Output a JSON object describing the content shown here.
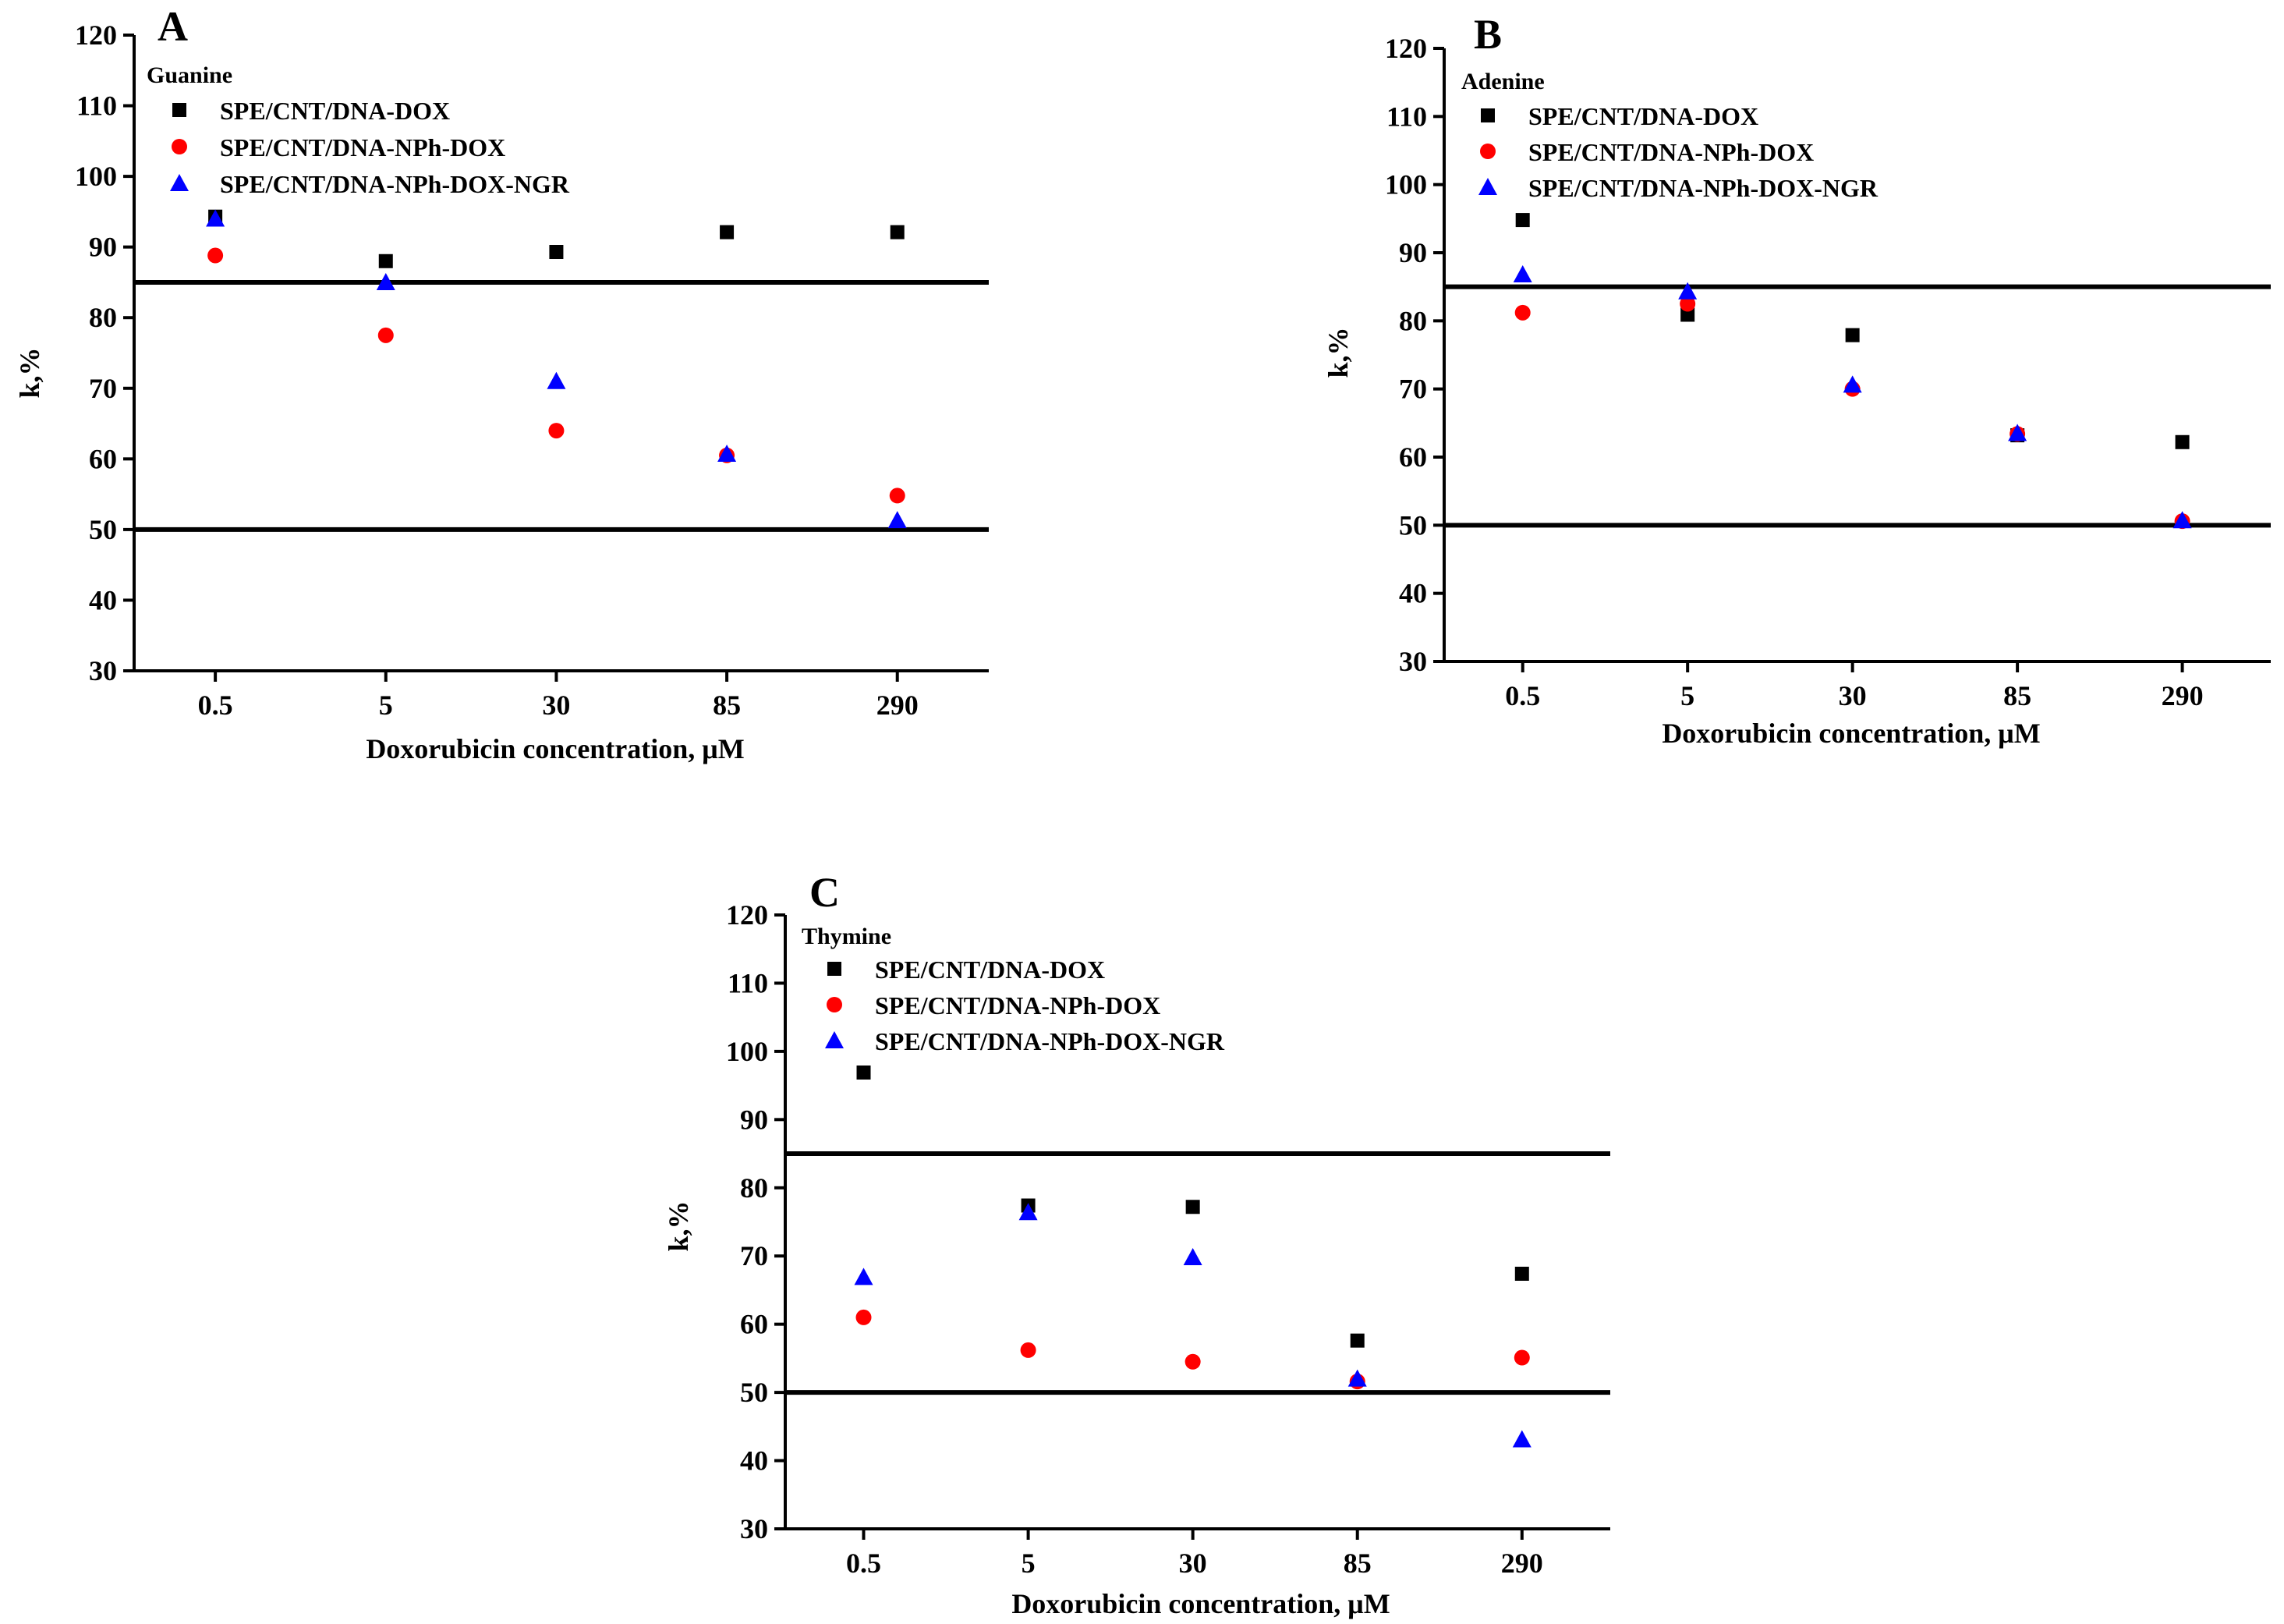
{
  "chart_data": [
    {
      "type": "scatter",
      "panel": "A",
      "title": "Guanine",
      "xlabel": "Doxorubicin concentration, μM",
      "ylabel": "k,%",
      "categories": [
        "0.5",
        "5",
        "30",
        "85",
        "290"
      ],
      "ylim": [
        30,
        120
      ],
      "yticks": [
        "30",
        "40",
        "50",
        "60",
        "70",
        "80",
        "90",
        "100",
        "110",
        "120"
      ],
      "reference_lines": [
        85,
        50
      ],
      "series": [
        {
          "name": "SPE/CNT/DNA-DOX",
          "marker": "square",
          "color": "#000000",
          "values": [
            94.3,
            88.0,
            89.3,
            92.1,
            92.1
          ]
        },
        {
          "name": "SPE/CNT/DNA-NPh-DOX",
          "marker": "circle",
          "color": "#ff0000",
          "values": [
            88.8,
            77.5,
            64.0,
            60.5,
            54.8
          ]
        },
        {
          "name": "SPE/CNT/DNA-NPh-DOX-NGR",
          "marker": "triangle",
          "color": "#0000ff",
          "values": [
            94.0,
            85.0,
            71.0,
            60.7,
            51.3
          ]
        }
      ]
    },
    {
      "type": "scatter",
      "panel": "B",
      "title": "Adenine",
      "xlabel": "Doxorubicin concentration, μM",
      "ylabel": "k,%",
      "categories": [
        "0.5",
        "5",
        "30",
        "85",
        "290"
      ],
      "ylim": [
        30,
        120
      ],
      "yticks": [
        "30",
        "40",
        "50",
        "60",
        "70",
        "80",
        "90",
        "100",
        "110",
        "120"
      ],
      "reference_lines": [
        85,
        50
      ],
      "series": [
        {
          "name": "SPE/CNT/DNA-DOX",
          "marker": "square",
          "color": "#000000",
          "values": [
            94.8,
            80.9,
            77.9,
            63.2,
            62.2
          ]
        },
        {
          "name": "SPE/CNT/DNA-NPh-DOX",
          "marker": "circle",
          "color": "#ff0000",
          "values": [
            81.2,
            82.5,
            70.0,
            63.4,
            50.6
          ]
        },
        {
          "name": "SPE/CNT/DNA-NPh-DOX-NGR",
          "marker": "triangle",
          "color": "#0000ff",
          "values": [
            86.8,
            84.3,
            70.6,
            63.5,
            50.7
          ]
        }
      ]
    },
    {
      "type": "scatter",
      "panel": "C",
      "title": "Thymine",
      "xlabel": "Doxorubicin concentration, μM",
      "ylabel": "k,%",
      "categories": [
        "0.5",
        "5",
        "30",
        "85",
        "290"
      ],
      "ylim": [
        30,
        120
      ],
      "yticks": [
        "30",
        "40",
        "50",
        "60",
        "70",
        "80",
        "90",
        "100",
        "110",
        "120"
      ],
      "reference_lines": [
        85,
        50
      ],
      "series": [
        {
          "name": "SPE/CNT/DNA-DOX",
          "marker": "square",
          "color": "#000000",
          "values": [
            96.9,
            77.4,
            77.2,
            57.6,
            67.4
          ]
        },
        {
          "name": "SPE/CNT/DNA-NPh-DOX",
          "marker": "circle",
          "color": "#ff0000",
          "values": [
            61.0,
            56.2,
            54.5,
            51.6,
            55.1
          ]
        },
        {
          "name": "SPE/CNT/DNA-NPh-DOX-NGR",
          "marker": "triangle",
          "color": "#0000ff",
          "values": [
            66.9,
            76.4,
            69.8,
            52.0,
            43.1
          ]
        }
      ]
    }
  ]
}
